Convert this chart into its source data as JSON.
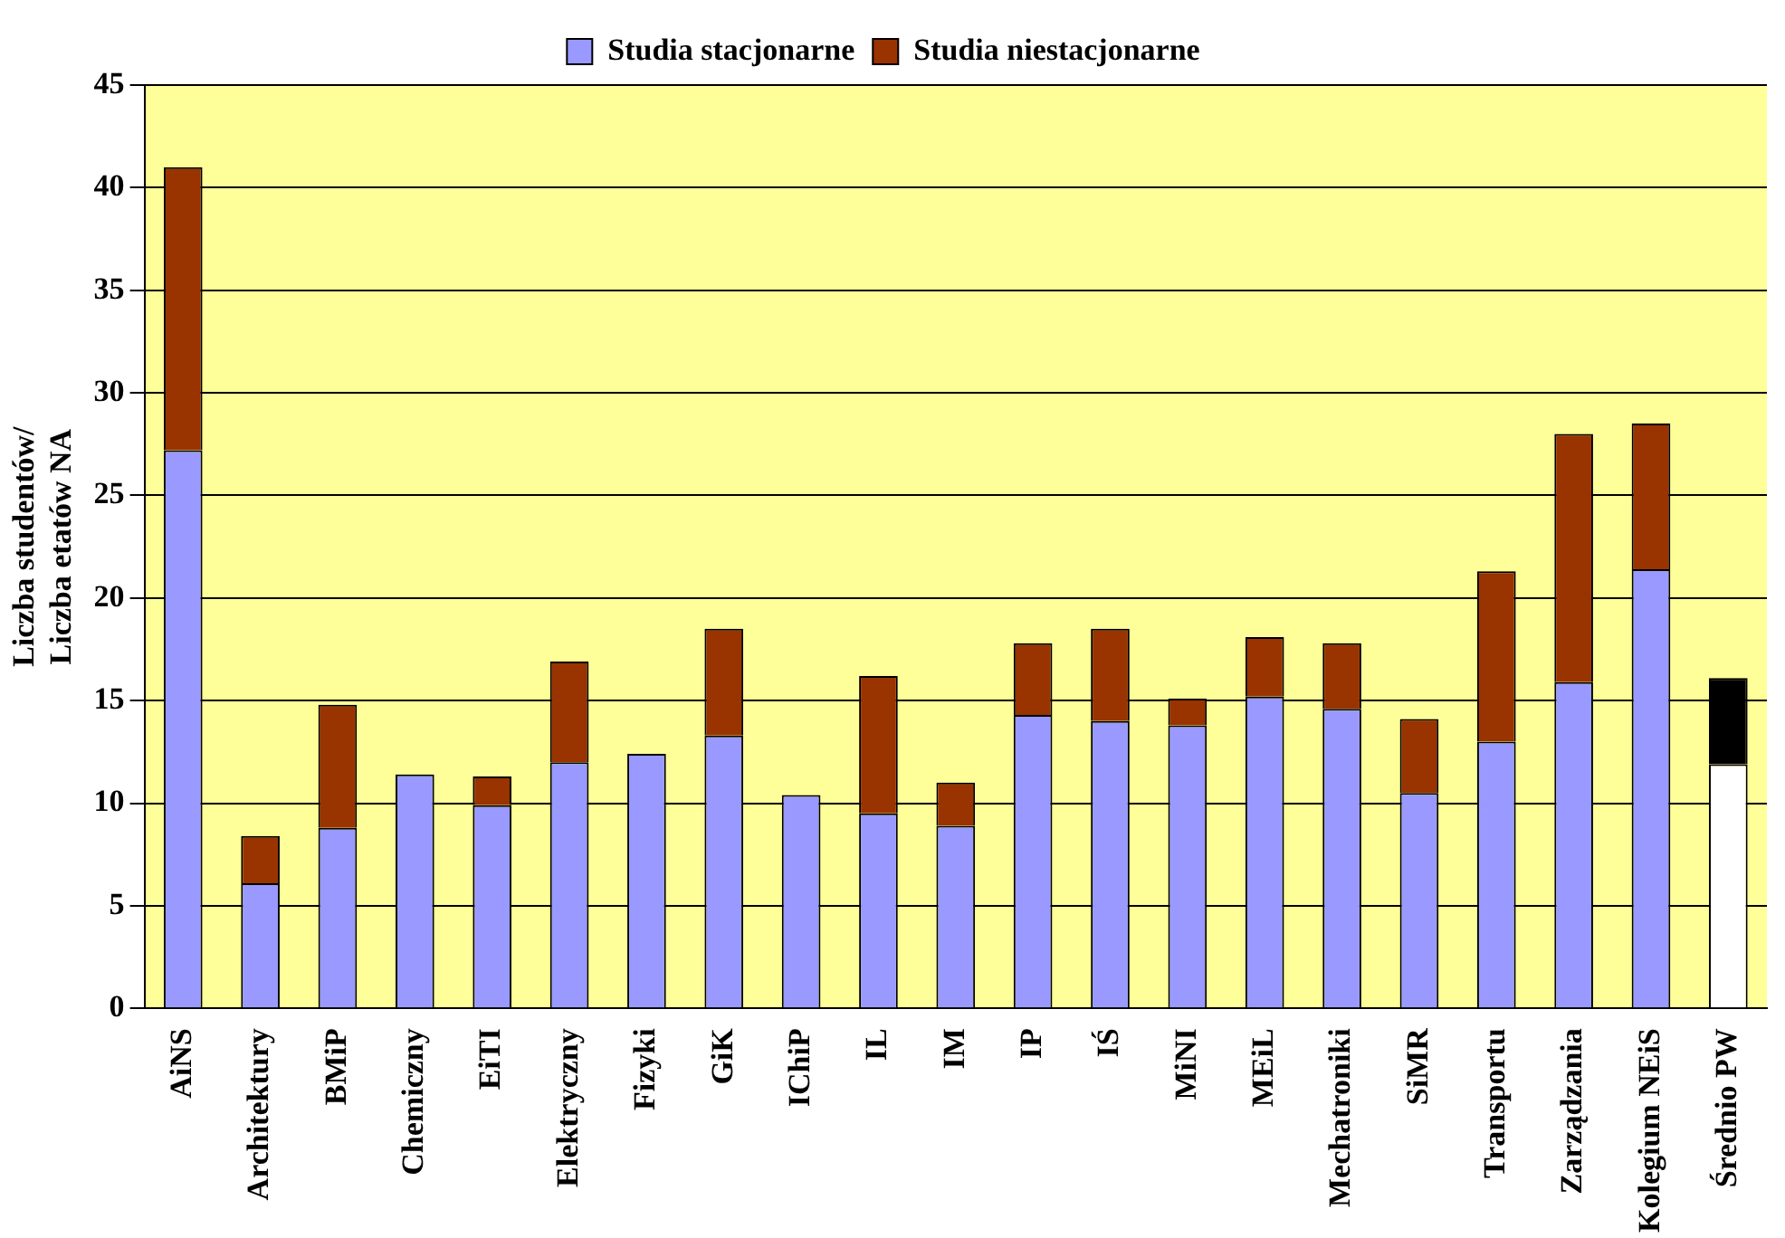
{
  "chart_data": {
    "type": "bar",
    "stacked": true,
    "ylabel": "Liczba studentów/\nLiczba etatów NA",
    "categories": [
      "AiNS",
      "Architektury",
      "BMiP",
      "Chemiczny",
      "EiTI",
      "Elektryczny",
      "Fizyki",
      "GiK",
      "IChiP",
      "IL",
      "IM",
      "IP",
      "IŚ",
      "MiNI",
      "MEiL",
      "Mechatroniki",
      "SiMR",
      "Transportu",
      "Zarządzania",
      "Kolegium NEiS",
      "Średnio PW"
    ],
    "series": [
      {
        "name": "Studia stacjonarne",
        "color": "#9999ff",
        "colors": [
          "#9999ff",
          "#9999ff",
          "#9999ff",
          "#9999ff",
          "#9999ff",
          "#9999ff",
          "#9999ff",
          "#9999ff",
          "#9999ff",
          "#9999ff",
          "#9999ff",
          "#9999ff",
          "#9999ff",
          "#9999ff",
          "#9999ff",
          "#9999ff",
          "#9999ff",
          "#9999ff",
          "#9999ff",
          "#9999ff",
          "#ffffff"
        ],
        "values": [
          27.2,
          6.1,
          8.8,
          11.4,
          9.9,
          12.0,
          12.4,
          13.3,
          10.4,
          9.5,
          8.9,
          14.3,
          14.0,
          13.8,
          15.2,
          14.6,
          10.5,
          13.0,
          15.9,
          21.4,
          11.9
        ]
      },
      {
        "name": "Studia niestacjonarne",
        "color": "#993300",
        "colors": [
          "#993300",
          "#993300",
          "#993300",
          "#993300",
          "#993300",
          "#993300",
          "#993300",
          "#993300",
          "#993300",
          "#993300",
          "#993300",
          "#993300",
          "#993300",
          "#993300",
          "#993300",
          "#993300",
          "#993300",
          "#993300",
          "#993300",
          "#993300",
          "#000000"
        ],
        "values": [
          13.8,
          2.3,
          6.0,
          0,
          1.4,
          4.9,
          0,
          5.2,
          0,
          6.7,
          2.1,
          3.5,
          4.5,
          1.3,
          2.9,
          3.2,
          3.6,
          8.3,
          12.1,
          7.1,
          4.2
        ]
      }
    ],
    "ylim": [
      0,
      45
    ],
    "yticks": [
      0,
      5,
      10,
      15,
      20,
      25,
      30,
      35,
      40,
      45
    ],
    "grid": "y",
    "legend": "top"
  }
}
